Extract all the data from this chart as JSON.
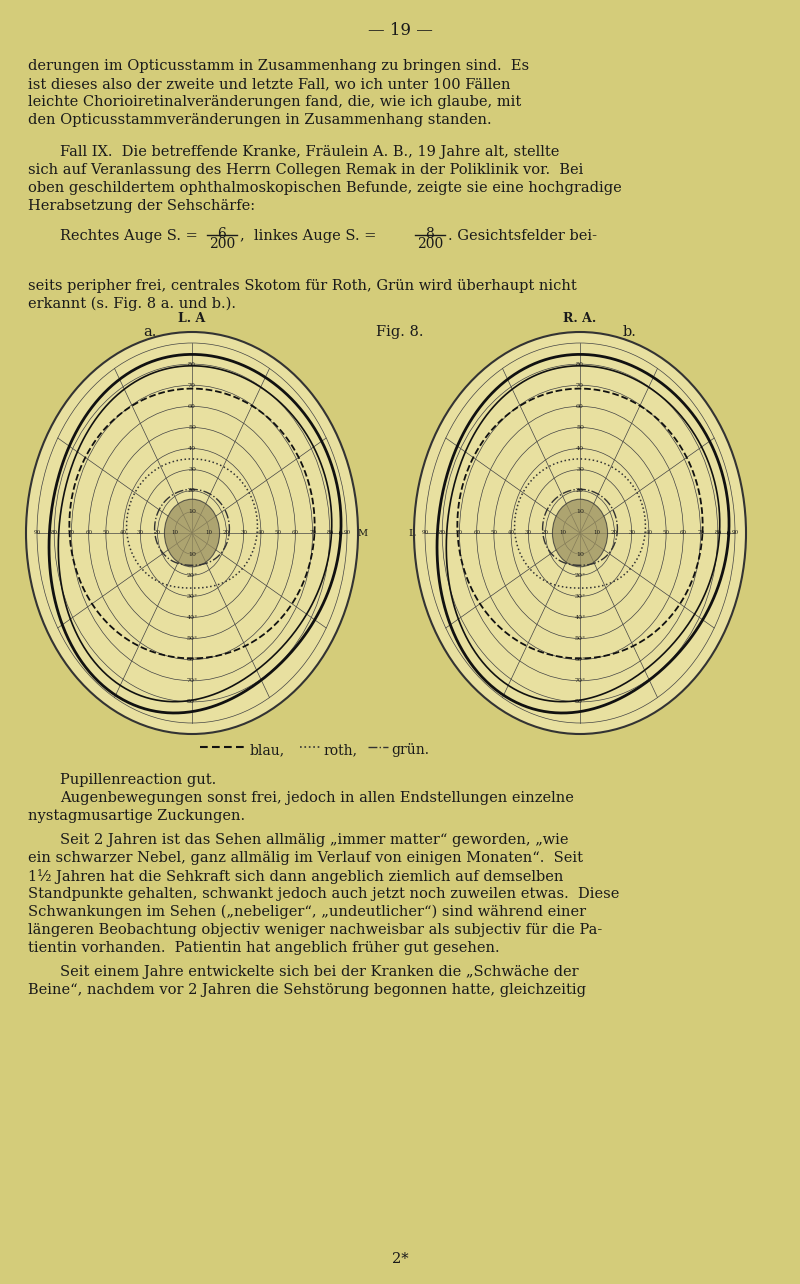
{
  "bg_color": "#d4cc7a",
  "text_color": "#1a1a1a",
  "chart_bg": "#e8e0a0",
  "grid_color": "#333333",
  "central_scotoma_color": "#9a9060",
  "page_title": "— 19 —",
  "lines1": [
    "derungen im Opticusstamm in Zusammenhang zu bringen sind.  Es",
    "ist dieses also der zweite und letzte Fall, wo ich unter 100 Fällen",
    "leichte Chorioiretinalveränderungen fand, die, wie ich glaube, mit",
    "den Opticusstammveränderungen in Zusammenhang standen."
  ],
  "lines2": [
    [
      "indent",
      "Fall IX.  Die betreffende Kranke, Fräulein A. B., 19 Jahre alt, stellte"
    ],
    [
      "norm",
      "sich auf Veranlassung des Herrn Collegen Remak in der Poliklinik vor.  Bei"
    ],
    [
      "norm",
      "oben geschildertem ophthalmoskopischen Befunde, zeigte sie eine hochgradige"
    ],
    [
      "norm",
      "Herabsetzung der Sehschärfe:"
    ]
  ],
  "lines3": [
    "seits peripher frei, centrales Skotom für Roth, Grün wird überhaupt nicht",
    "erkannt (s. Fig. 8 a. und b.)."
  ],
  "lines4": [
    [
      "indent2",
      "Pupillenreaction gut."
    ],
    [
      "indent2",
      "Augenbewegungen sonst frei, jedoch in allen Endstellungen einzelne"
    ],
    [
      "norm",
      "nystagmusartige Zuckungen."
    ]
  ],
  "lines5": [
    [
      "indent",
      "Seit 2 Jahren ist das Sehen allmälig „immer matter“ geworden, „wie"
    ],
    [
      "norm",
      "ein schwarzer Nebel, ganz allmälig im Verlauf von einigen Monaten“.  Seit"
    ],
    [
      "norm",
      "1¹⁄₂ Jahren hat die Sehkraft sich dann angeblich ziemlich auf demselben"
    ],
    [
      "norm",
      "Standpunkte gehalten, schwankt jedoch auch jetzt noch zuweilen etwas.  Diese"
    ],
    [
      "norm",
      "Schwankungen im Sehen („nebeliger“, „undeutlicher“) sind während einer"
    ],
    [
      "norm",
      "längeren Beobachtung objectiv weniger nachweisbar als subjectiv für die Pa-"
    ],
    [
      "norm",
      "tientin vorhanden.  Patientin hat angeblich früher gut gesehen."
    ]
  ],
  "lines6": [
    [
      "indent",
      "Seit einem Jahre entwickelte sich bei der Kranken die „Schwäche der"
    ],
    [
      "norm",
      "Beine“, nachdem vor 2 Jahren die Sehstörung begonnen hatte, gleichzeitig"
    ]
  ],
  "page_footer": "2*",
  "left_eye_label": "L. A",
  "right_eye_label": "R. A.",
  "fig_label": "Fig. 8.",
  "fig_a": "a.",
  "fig_b": "b.",
  "M_label": "M",
  "L_label": "L"
}
